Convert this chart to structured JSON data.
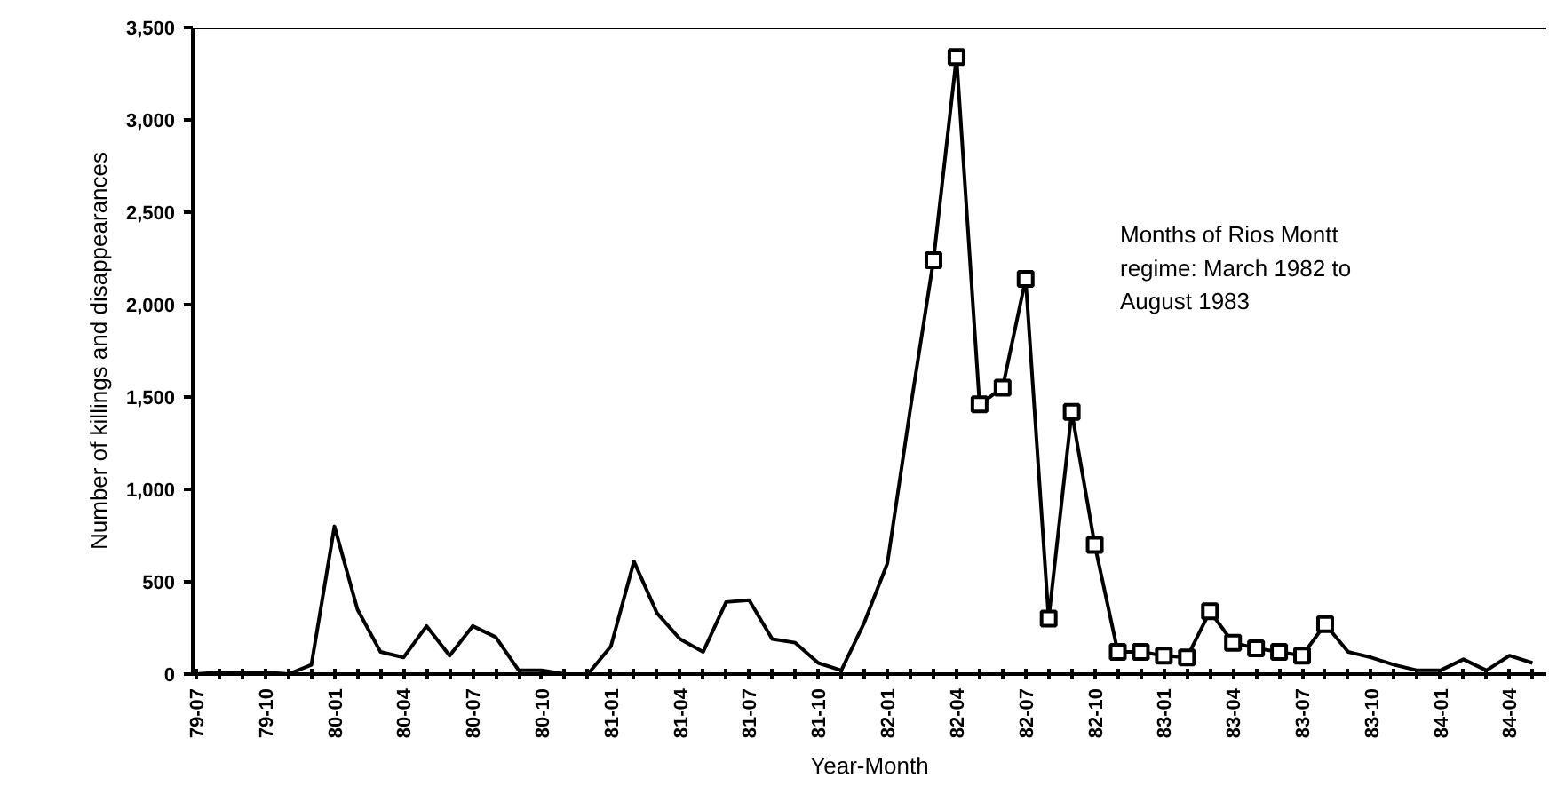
{
  "chart_data": {
    "type": "line",
    "xlabel": "Year-Month",
    "ylabel": "Number of killings and disappearances",
    "categories": [
      "79-07",
      null,
      null,
      "79-10",
      null,
      null,
      "80-01",
      null,
      null,
      "80-04",
      null,
      null,
      "80-07",
      null,
      null,
      "80-10",
      null,
      null,
      "81-01",
      null,
      null,
      "81-04",
      null,
      null,
      "81-07",
      null,
      null,
      "81-10",
      null,
      null,
      "82-01",
      null,
      null,
      "82-04",
      null,
      null,
      "82-07",
      null,
      null,
      "82-10",
      null,
      null,
      "83-01",
      null,
      null,
      "83-04",
      null,
      null,
      "83-07",
      null,
      null,
      "83-10",
      null,
      null,
      "84-01",
      null,
      null,
      "84-04",
      null
    ],
    "series": [
      {
        "color": "#000000",
        "marker": "none",
        "values": [
          0,
          10,
          10,
          10,
          0,
          50,
          800,
          350,
          120,
          90,
          260,
          100,
          260,
          200,
          20,
          20,
          0,
          0,
          150,
          610,
          330,
          190,
          120,
          390,
          400,
          190,
          170,
          60,
          20,
          280,
          600,
          1440,
          2240,
          3340,
          1460,
          1550,
          2140,
          300,
          1420,
          700,
          120,
          120,
          100,
          90,
          340,
          170,
          140,
          120,
          100,
          270,
          120,
          90,
          50,
          20,
          20,
          80,
          20,
          100,
          60
        ]
      },
      {
        "type": "scatter",
        "color": "#000000",
        "marker": "square",
        "values": [
          null,
          null,
          null,
          null,
          null,
          null,
          null,
          null,
          null,
          null,
          null,
          null,
          null,
          null,
          null,
          null,
          null,
          null,
          null,
          null,
          null,
          null,
          null,
          null,
          null,
          null,
          null,
          null,
          null,
          null,
          null,
          null,
          2240,
          3340,
          1460,
          1550,
          2140,
          300,
          1420,
          700,
          120,
          120,
          100,
          90,
          340,
          170,
          140,
          120,
          100,
          270,
          null,
          null,
          null,
          null,
          null,
          null,
          null,
          null,
          null
        ]
      }
    ],
    "ylim": [
      0,
      3500
    ],
    "yticks": [
      0,
      {
        "value": 500,
        "label": "500"
      },
      {
        "value": 1000,
        "label": "1,000"
      },
      {
        "value": 1500,
        "label": "1,500"
      },
      {
        "value": 2000,
        "label": "2,000"
      },
      {
        "value": 2500,
        "label": "2,500"
      },
      {
        "value": 3000,
        "label": "3,000"
      },
      {
        "value": 3500,
        "label": "3,500"
      }
    ],
    "annotations": [
      "Months of Rios Montt\nregime: March 1982 to\nAugust 1983"
    ],
    "grid": false
  }
}
